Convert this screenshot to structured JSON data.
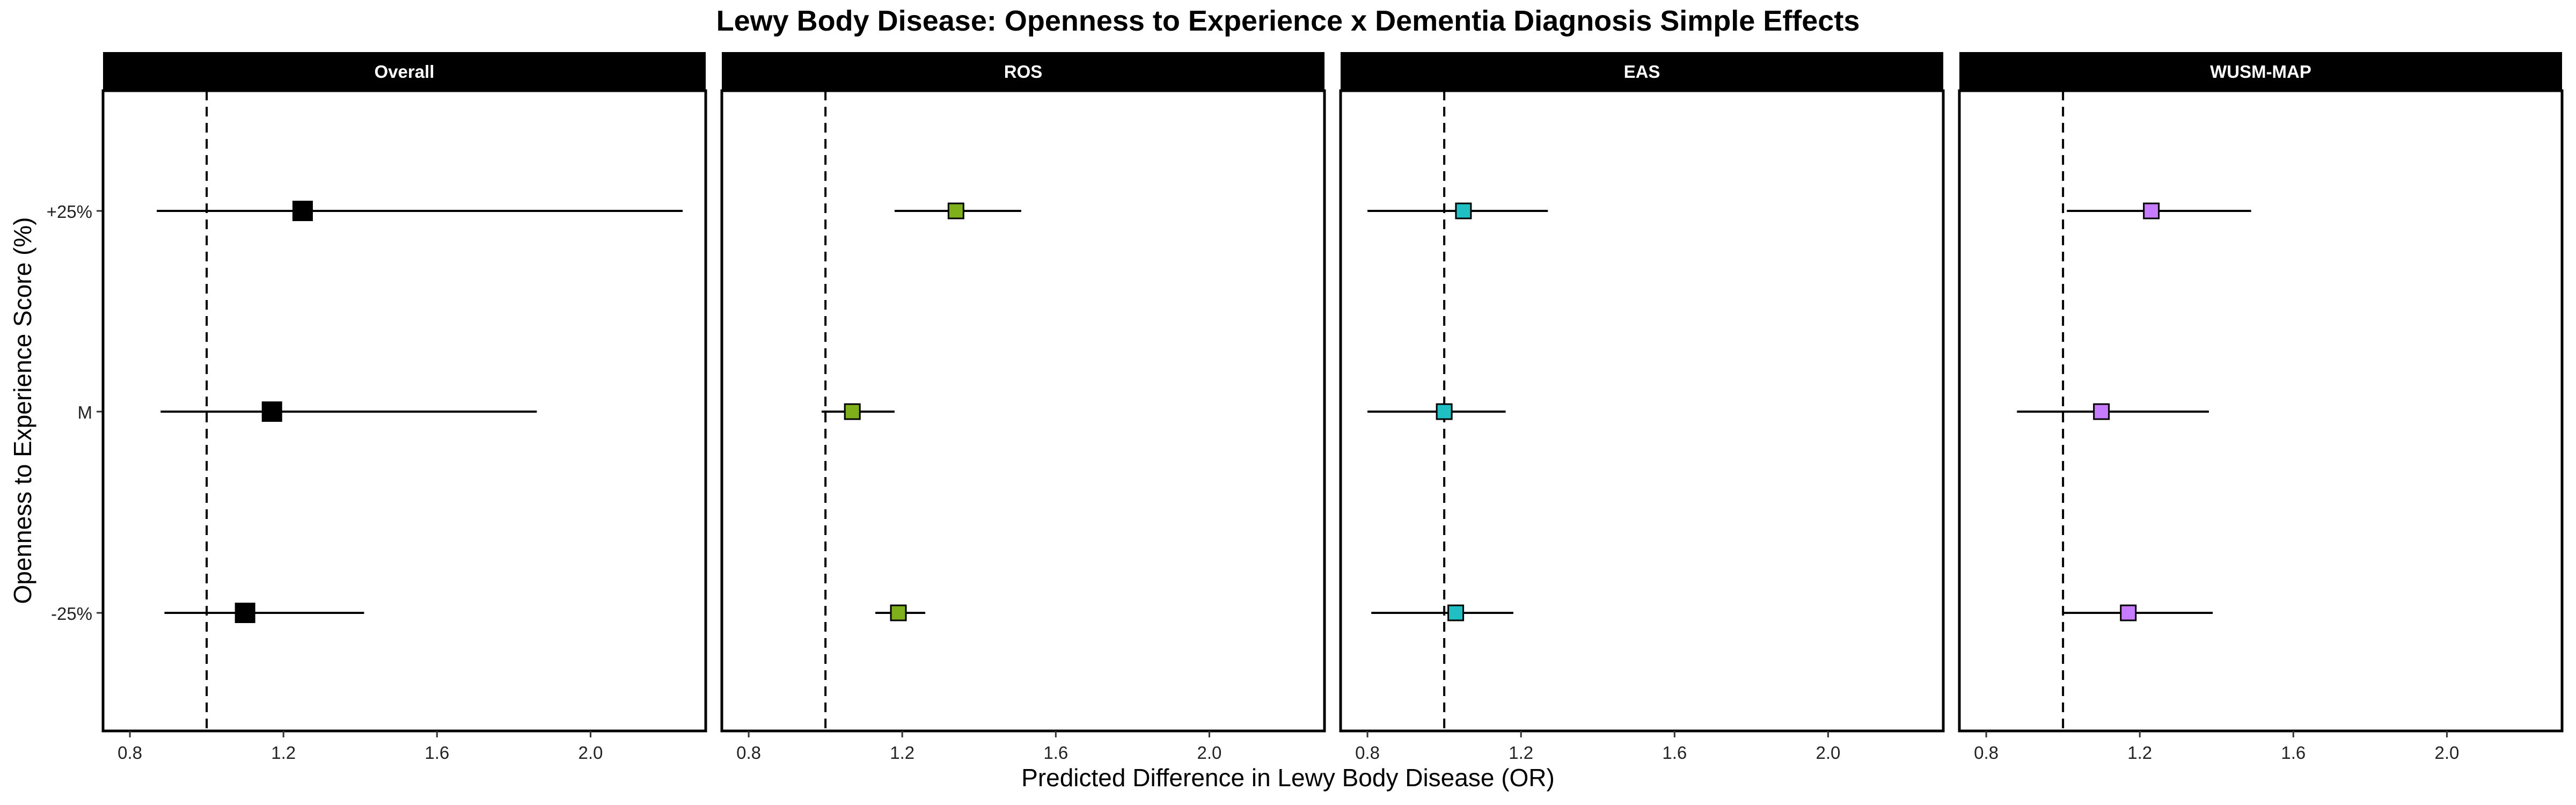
{
  "chart_data": {
    "type": "scatter",
    "title": "Lewy Body Disease: Openness to Experience x Dementia Diagnosis Simple Effects",
    "xlabel": "Predicted Difference in Lewy Body Disease (OR)",
    "ylabel": "Openness to Experience Score (%)",
    "y_categories": [
      "-25%",
      "M",
      "+25%"
    ],
    "x_ticks": [
      "0.8",
      "1.2",
      "1.6",
      "2.0"
    ],
    "xlim": [
      0.73,
      2.3
    ],
    "reference_line": 1.0,
    "grid": false,
    "panels": [
      {
        "name": "Overall",
        "color": "#000000",
        "points": [
          {
            "y": "+25%",
            "x": 1.25,
            "lo": 0.87,
            "hi": 2.24
          },
          {
            "y": "M",
            "x": 1.17,
            "lo": 0.88,
            "hi": 1.86
          },
          {
            "y": "-25%",
            "x": 1.1,
            "lo": 0.89,
            "hi": 1.41
          }
        ]
      },
      {
        "name": "ROS",
        "color": "#7FAF1B",
        "points": [
          {
            "y": "+25%",
            "x": 1.34,
            "lo": 1.18,
            "hi": 1.51
          },
          {
            "y": "M",
            "x": 1.07,
            "lo": 0.99,
            "hi": 1.18
          },
          {
            "y": "-25%",
            "x": 1.19,
            "lo": 1.13,
            "hi": 1.26
          }
        ]
      },
      {
        "name": "EAS",
        "color": "#1FBFC4",
        "points": [
          {
            "y": "+25%",
            "x": 1.05,
            "lo": 0.8,
            "hi": 1.27
          },
          {
            "y": "M",
            "x": 1.0,
            "lo": 0.8,
            "hi": 1.16
          },
          {
            "y": "-25%",
            "x": 1.03,
            "lo": 0.81,
            "hi": 1.18
          }
        ]
      },
      {
        "name": "WUSM-MAP",
        "color": "#C77CFF",
        "points": [
          {
            "y": "+25%",
            "x": 1.23,
            "lo": 1.01,
            "hi": 1.49
          },
          {
            "y": "M",
            "x": 1.1,
            "lo": 0.88,
            "hi": 1.38
          },
          {
            "y": "-25%",
            "x": 1.17,
            "lo": 1.0,
            "hi": 1.39
          }
        ]
      }
    ]
  }
}
